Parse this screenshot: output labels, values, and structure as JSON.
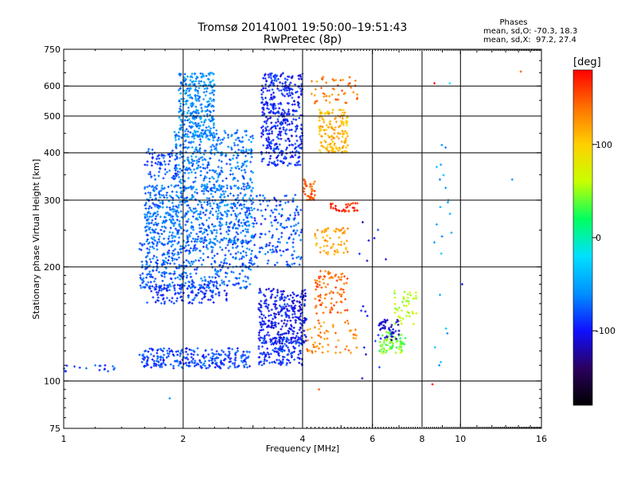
{
  "chart_data": {
    "type": "scatter",
    "title": "Tromsø 20141001 19:50:00–19:51:43",
    "subtitle": "RwPretec (8p)",
    "xlabel": "Frequency [MHz]",
    "ylabel": "Stationary phase Virtual Height [km]",
    "xscale": "log",
    "yscale": "log",
    "xlim": [
      1,
      16
    ],
    "ylim": [
      75,
      750
    ],
    "xticks": [
      1,
      2,
      4,
      6,
      8,
      10,
      16
    ],
    "yticks": [
      75,
      100,
      200,
      300,
      400,
      500,
      600,
      750
    ],
    "x_gridlines": [
      2,
      4,
      6,
      8,
      10
    ],
    "y_gridlines": [
      100,
      200,
      300,
      400,
      500,
      600
    ],
    "stats": {
      "title": "Phases",
      "line1": "mean, sd,O: -70.3, 18.3",
      "line2": "mean, sd,X:  97.2, 27.4"
    },
    "colorbar": {
      "label": "[deg]",
      "range": [
        -180,
        180
      ],
      "ticks": [
        -100,
        0,
        100
      ],
      "colors": [
        "#000000",
        "#2b0060",
        "#1010ff",
        "#0090ff",
        "#00e0ff",
        "#00ff60",
        "#c8ff00",
        "#ffd000",
        "#ff7000",
        "#ff0000"
      ]
    },
    "clusters": [
      {
        "name": "E-layer O trace",
        "x": [
          1.55,
          2.95
        ],
        "y": [
          108,
          122
        ],
        "phase": -85,
        "count": 260
      },
      {
        "name": "low freq points",
        "x": [
          1.0,
          1.35
        ],
        "y": [
          106,
          110
        ],
        "phase": -85,
        "count": 18
      },
      {
        "name": "F1 diffuse 1.6-3.0 upper",
        "x": [
          1.6,
          3.0
        ],
        "y": [
          230,
          330
        ],
        "phase": -70,
        "count": 650
      },
      {
        "name": "F1 diffuse 1.6-3.0 lower",
        "x": [
          1.55,
          3.0
        ],
        "y": [
          175,
          235
        ],
        "phase": -75,
        "count": 420
      },
      {
        "name": "F1 low band",
        "x": [
          1.6,
          2.6
        ],
        "y": [
          160,
          180
        ],
        "phase": -92,
        "count": 140
      },
      {
        "name": "F2 diffuse 2.0-2.4 high",
        "x": [
          1.95,
          2.4
        ],
        "y": [
          440,
          650
        ],
        "phase": -60,
        "count": 320
      },
      {
        "name": "F2 diffuse 2.0-3.0 mid",
        "x": [
          1.9,
          3.0
        ],
        "y": [
          320,
          460
        ],
        "phase": -68,
        "count": 360
      },
      {
        "name": "F2 slant 1.6-1.9",
        "x": [
          1.6,
          1.95
        ],
        "y": [
          340,
          410
        ],
        "phase": -85,
        "count": 70
      },
      {
        "name": "F2 X 3.2-4.0 high",
        "x": [
          3.15,
          4.0
        ],
        "y": [
          370,
          650
        ],
        "phase": -95,
        "count": 420
      },
      {
        "name": "F1 X 3.1-4.0 band",
        "x": [
          3.1,
          4.1
        ],
        "y": [
          125,
          175
        ],
        "phase": -100,
        "count": 300
      },
      {
        "name": "F1 X 3.1-4.0 lower",
        "x": [
          3.1,
          4.0
        ],
        "y": [
          110,
          130
        ],
        "phase": -90,
        "count": 150
      },
      {
        "name": "mid 3.1-4.0",
        "x": [
          3.0,
          4.0
        ],
        "y": [
          200,
          310
        ],
        "phase": -80,
        "count": 170
      },
      {
        "name": "X F2 upper 4.4-5.0",
        "x": [
          4.4,
          5.2
        ],
        "y": [
          400,
          520
        ],
        "phase": 110,
        "count": 160
      },
      {
        "name": "X F2 top 4.3-5.5",
        "x": [
          4.2,
          5.5
        ],
        "y": [
          540,
          640
        ],
        "phase": 135,
        "count": 50
      },
      {
        "name": "X mid 4.0-4.4",
        "x": [
          4.0,
          4.3
        ],
        "y": [
          300,
          340
        ],
        "phase": 150,
        "count": 40
      },
      {
        "name": "X 285 band",
        "x": [
          4.7,
          5.5
        ],
        "y": [
          280,
          295
        ],
        "phase": 170,
        "count": 35
      },
      {
        "name": "X 220-250 band",
        "x": [
          4.3,
          5.2
        ],
        "y": [
          215,
          255
        ],
        "phase": 120,
        "count": 60
      },
      {
        "name": "X 160-190 band",
        "x": [
          4.3,
          5.2
        ],
        "y": [
          150,
          195
        ],
        "phase": 145,
        "count": 90
      },
      {
        "name": "X 120-145 band",
        "x": [
          4.1,
          5.5
        ],
        "y": [
          118,
          145
        ],
        "phase": 130,
        "count": 60
      },
      {
        "name": "F1 X 6-7.5 O",
        "x": [
          6.2,
          7.3
        ],
        "y": [
          118,
          135
        ],
        "phase": 40,
        "count": 75
      },
      {
        "name": "F1 X 6-7.5 upper",
        "x": [
          6.8,
          7.8
        ],
        "y": [
          140,
          175
        ],
        "phase": 60,
        "count": 45
      },
      {
        "name": "blue 6-7 upper",
        "x": [
          6.2,
          7.0
        ],
        "y": [
          128,
          145
        ],
        "phase": -110,
        "count": 45
      },
      {
        "name": "scattered 8-10",
        "x": [
          8.5,
          9.5
        ],
        "y": [
          100,
          500
        ],
        "phase": -50,
        "count": 22
      },
      {
        "name": "scattered 5-6.5",
        "x": [
          5.5,
          6.5
        ],
        "y": [
          95,
          300
        ],
        "phase": -100,
        "count": 18
      }
    ],
    "isolated_points": [
      {
        "x": 1.85,
        "y": 90,
        "phase": -60
      },
      {
        "x": 14.2,
        "y": 655,
        "phase": 150
      },
      {
        "x": 13.5,
        "y": 340,
        "phase": -60
      },
      {
        "x": 9.4,
        "y": 610,
        "phase": -20
      },
      {
        "x": 8.6,
        "y": 610,
        "phase": 180
      },
      {
        "x": 8.5,
        "y": 98,
        "phase": 170
      },
      {
        "x": 10.1,
        "y": 180,
        "phase": -100
      },
      {
        "x": 4.4,
        "y": 95,
        "phase": 150
      }
    ]
  }
}
